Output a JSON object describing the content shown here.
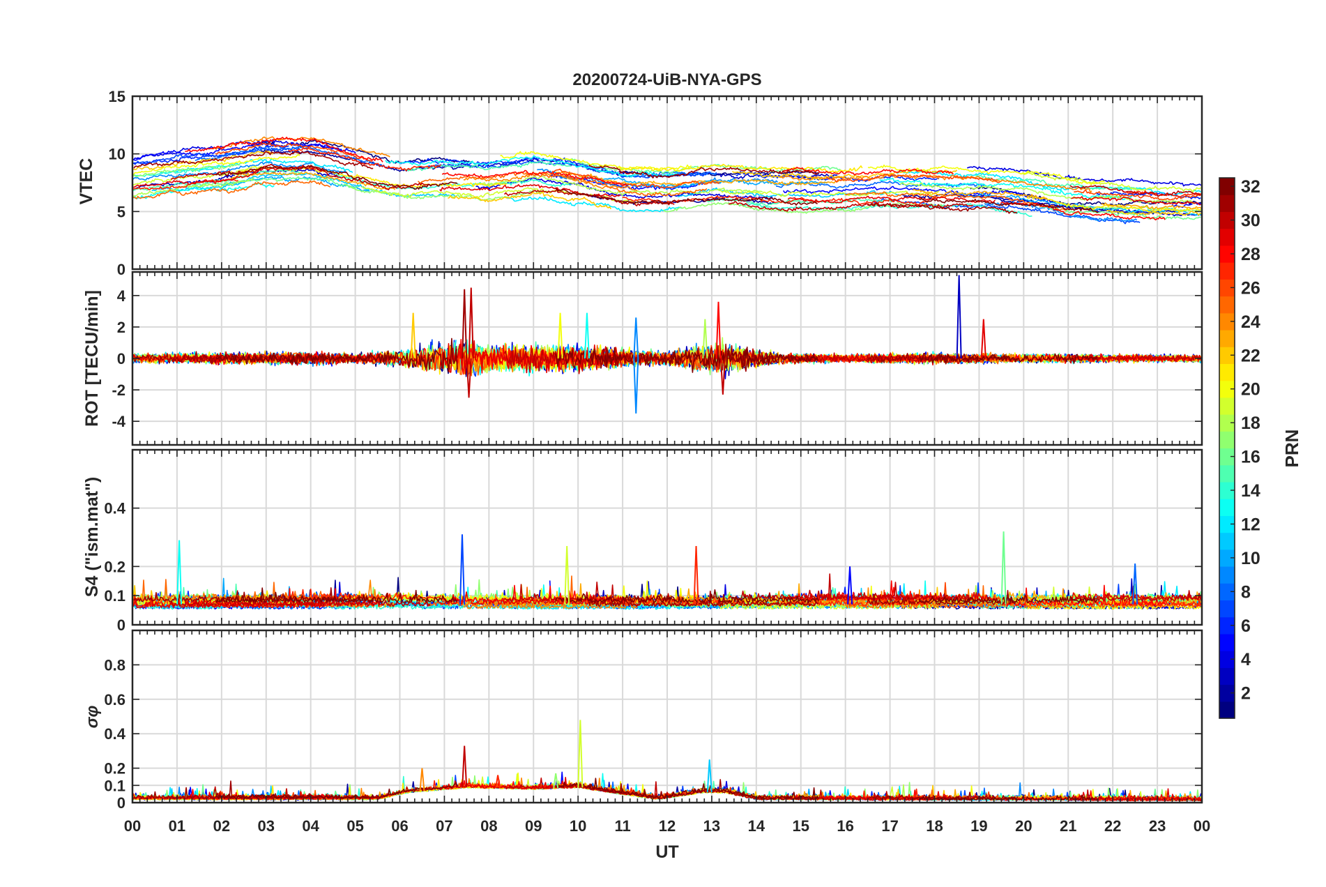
{
  "chart_data": {
    "type": "line",
    "title": "20200724-UiB-NYA-GPS",
    "xlabel": "UT",
    "xlim": [
      0,
      24
    ],
    "x_ticks": [
      "00",
      "01",
      "02",
      "03",
      "04",
      "05",
      "06",
      "07",
      "08",
      "09",
      "10",
      "11",
      "12",
      "13",
      "14",
      "15",
      "16",
      "17",
      "18",
      "19",
      "20",
      "21",
      "22",
      "23",
      "00"
    ],
    "colorbar": {
      "label": "PRN",
      "range": [
        1,
        32
      ],
      "ticks": [
        "2",
        "4",
        "6",
        "8",
        "10",
        "12",
        "14",
        "16",
        "18",
        "20",
        "22",
        "24",
        "26",
        "28",
        "30",
        "32"
      ],
      "colormap": "jet"
    },
    "panels": [
      {
        "id": "vtec",
        "ylabel": "VTEC",
        "ylim": [
          0,
          15
        ],
        "yticks": [
          0,
          5,
          10,
          15
        ],
        "ytick_labels": [
          "0",
          "5",
          "10",
          "15"
        ],
        "signal": {
          "kind": "level",
          "profile": [
            [
              0,
              7.8
            ],
            [
              1,
              8.3
            ],
            [
              2,
              8.6
            ],
            [
              3,
              9.3
            ],
            [
              4,
              9.3
            ],
            [
              5,
              8.4
            ],
            [
              6,
              7.6
            ],
            [
              7,
              7.8
            ],
            [
              8,
              7.7
            ],
            [
              9,
              8.2
            ],
            [
              10,
              7.7
            ],
            [
              11,
              7.0
            ],
            [
              12,
              6.8
            ],
            [
              13,
              7.2
            ],
            [
              14,
              7.0
            ],
            [
              15,
              7.0
            ],
            [
              16,
              7.0
            ],
            [
              17,
              7.2
            ],
            [
              18,
              7.0
            ],
            [
              19,
              6.9
            ],
            [
              20,
              6.6
            ],
            [
              21,
              6.0
            ],
            [
              22,
              5.8
            ],
            [
              23,
              5.6
            ],
            [
              24,
              5.5
            ]
          ],
          "spread": 2.0,
          "noise": 0.25,
          "floor": 3.0,
          "ceil": 11.8
        }
      },
      {
        "id": "rot",
        "ylabel": "ROT [TECU/min]",
        "ylim": [
          -5.5,
          5.5
        ],
        "yticks": [
          -4,
          -2,
          0,
          2,
          4
        ],
        "ytick_labels": [
          "-4",
          "-2",
          "0",
          "2",
          "4"
        ],
        "signal": {
          "kind": "centered",
          "profile": [
            [
              0,
              0.25
            ],
            [
              2,
              0.3
            ],
            [
              4,
              0.35
            ],
            [
              5,
              0.25
            ],
            [
              6,
              0.5
            ],
            [
              7,
              0.9
            ],
            [
              7.6,
              1.1
            ],
            [
              8,
              0.8
            ],
            [
              9,
              0.8
            ],
            [
              10,
              0.7
            ],
            [
              11,
              0.5
            ],
            [
              12,
              0.35
            ],
            [
              12.7,
              0.7
            ],
            [
              13.2,
              0.9
            ],
            [
              13.8,
              0.6
            ],
            [
              14.5,
              0.3
            ],
            [
              16,
              0.22
            ],
            [
              18,
              0.3
            ],
            [
              20,
              0.25
            ],
            [
              24,
              0.2
            ]
          ],
          "spikes": [
            [
              6.3,
              2.9,
              22
            ],
            [
              7.45,
              4.4,
              31
            ],
            [
              7.6,
              4.5,
              30
            ],
            [
              7.55,
              -2.5,
              30
            ],
            [
              9.6,
              2.9,
              20
            ],
            [
              10.2,
              2.9,
              13
            ],
            [
              11.3,
              -3.5,
              9
            ],
            [
              11.3,
              2.6,
              9
            ],
            [
              12.85,
              2.5,
              18
            ],
            [
              13.15,
              3.6,
              28
            ],
            [
              13.25,
              -2.3,
              30
            ],
            [
              18.55,
              5.3,
              3
            ],
            [
              19.1,
              2.5,
              29
            ]
          ]
        }
      },
      {
        "id": "s4",
        "ylabel": "S4 (\"ism.mat\")",
        "ylim": [
          0,
          0.6
        ],
        "yticks": [
          0,
          0.1,
          0.2,
          0.4
        ],
        "ytick_labels": [
          "0",
          "0.1",
          "0.2",
          "0.4"
        ],
        "signal": {
          "kind": "positive",
          "profile": [
            [
              0,
              0.07
            ],
            [
              6,
              0.07
            ],
            [
              12,
              0.07
            ],
            [
              18,
              0.07
            ],
            [
              24,
              0.07
            ]
          ],
          "spread": 0.035,
          "noise": 0.02,
          "floor": 0.03,
          "spikes": [
            [
              1.05,
              0.29,
              13
            ],
            [
              7.4,
              0.31,
              7
            ],
            [
              9.75,
              0.27,
              19
            ],
            [
              12.65,
              0.27,
              27
            ],
            [
              19.55,
              0.32,
              16
            ],
            [
              16.1,
              0.2,
              5
            ],
            [
              22.5,
              0.21,
              8
            ]
          ]
        }
      },
      {
        "id": "sigma_phi",
        "ylabel": "σφ",
        "ylim": [
          0,
          1
        ],
        "yticks": [
          0,
          0.1,
          0.2,
          0.4,
          0.6,
          0.8
        ],
        "ytick_labels": [
          "0",
          "0.1",
          "0.2",
          "0.4",
          "0.6",
          "0.8"
        ],
        "signal": {
          "kind": "positive",
          "profile": [
            [
              0,
              0.02
            ],
            [
              5.5,
              0.02
            ],
            [
              6.2,
              0.06
            ],
            [
              7.5,
              0.09
            ],
            [
              9,
              0.08
            ],
            [
              10,
              0.09
            ],
            [
              11,
              0.05
            ],
            [
              11.8,
              0.02
            ],
            [
              12.8,
              0.06
            ],
            [
              13.3,
              0.06
            ],
            [
              14,
              0.02
            ],
            [
              24,
              0.015
            ]
          ],
          "spread": 0.01,
          "noise": 0.02,
          "floor": 0.0,
          "spikes": [
            [
              6.5,
              0.2,
              24
            ],
            [
              7.45,
              0.33,
              30
            ],
            [
              10.05,
              0.48,
              19
            ],
            [
              12.95,
              0.25,
              11
            ],
            [
              8.2,
              0.16,
              27
            ],
            [
              9.5,
              0.17,
              17
            ]
          ]
        }
      }
    ]
  }
}
